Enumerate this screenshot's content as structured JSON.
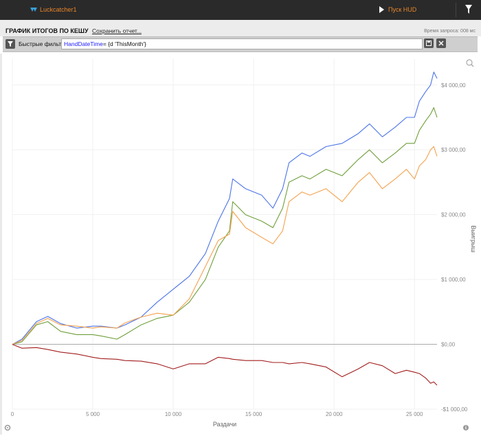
{
  "topbar": {
    "app_name": "Luckcatcher1",
    "hud_label": "Пуск HUD"
  },
  "header": {
    "title": "ГРАФИК ИТОГОВ ПО КЕШУ",
    "save_label": "Сохранить отчет...",
    "query_time": "Время запроса: 008 мс"
  },
  "filter": {
    "label": "Быстрые фильтры",
    "keyword": "HandDateTime",
    "value": "= {d 'ThisMonth'}"
  },
  "colors": {
    "series1": "#4a72e8",
    "series2": "#6f9e3a",
    "series3": "#f4a14e",
    "series4": "#a21b1b"
  },
  "chart_data": {
    "type": "line",
    "xlabel": "Раздачи",
    "ylabel": "Выигрыш",
    "xlim": [
      0,
      26400
    ],
    "ylim": [
      -1000,
      4400
    ],
    "x_ticks": [
      0,
      5000,
      10000,
      15000,
      20000,
      25000
    ],
    "x_tick_labels": [
      "0",
      "5 000",
      "10 000",
      "15 000",
      "20 000",
      "25 000"
    ],
    "y_ticks": [
      -1000,
      0,
      1000,
      2000,
      3000,
      4000
    ],
    "y_tick_labels": [
      "-$1 000,00",
      "$0,00",
      "$1 000,00",
      "$2 000,00",
      "$3 000,00",
      "$4 000,00"
    ],
    "grid": true,
    "series": [
      {
        "color": "#4a72e8",
        "x": [
          0,
          600,
          1500,
          2200,
          3000,
          4000,
          5000,
          5500,
          6500,
          7000,
          8000,
          9000,
          10000,
          11000,
          12000,
          12800,
          13500,
          13700,
          14500,
          15500,
          16200,
          16800,
          17200,
          18000,
          18500,
          19500,
          20500,
          21500,
          22200,
          23000,
          23800,
          24500,
          25000,
          25300,
          25700,
          26000,
          26200,
          26400
        ],
        "y": [
          0,
          80,
          350,
          430,
          320,
          250,
          280,
          280,
          250,
          300,
          420,
          650,
          850,
          1050,
          1400,
          1900,
          2250,
          2550,
          2400,
          2300,
          2100,
          2400,
          2800,
          2950,
          2900,
          3050,
          3100,
          3250,
          3400,
          3200,
          3350,
          3500,
          3500,
          3750,
          3900,
          4000,
          4200,
          4100
        ]
      },
      {
        "color": "#6f9e3a",
        "x": [
          0,
          600,
          1500,
          2200,
          3000,
          4000,
          5000,
          5500,
          6500,
          7000,
          8000,
          9000,
          10000,
          11000,
          12000,
          12800,
          13500,
          13700,
          14500,
          15500,
          16200,
          16800,
          17200,
          18000,
          18500,
          19500,
          20500,
          21500,
          22200,
          23000,
          23800,
          24500,
          25000,
          25300,
          25700,
          26000,
          26200,
          26400
        ],
        "y": [
          0,
          40,
          300,
          350,
          200,
          150,
          150,
          130,
          80,
          150,
          300,
          400,
          450,
          650,
          1000,
          1500,
          1750,
          2200,
          2000,
          1900,
          1800,
          2100,
          2500,
          2600,
          2550,
          2700,
          2600,
          2850,
          3000,
          2800,
          2950,
          3100,
          3100,
          3300,
          3450,
          3550,
          3650,
          3500
        ]
      },
      {
        "color": "#f4a14e",
        "x": [
          0,
          600,
          1500,
          2200,
          3000,
          4000,
          5000,
          5500,
          6500,
          7000,
          8000,
          9000,
          10000,
          11000,
          12000,
          12800,
          13500,
          13700,
          14500,
          15500,
          16200,
          16800,
          17200,
          18000,
          18500,
          19500,
          20500,
          21500,
          22200,
          23000,
          23800,
          24500,
          25000,
          25300,
          25700,
          26000,
          26200,
          26400
        ],
        "y": [
          0,
          60,
          320,
          400,
          300,
          280,
          250,
          270,
          250,
          330,
          420,
          480,
          450,
          700,
          1200,
          1600,
          1700,
          2050,
          1800,
          1650,
          1550,
          1750,
          2200,
          2350,
          2300,
          2400,
          2200,
          2500,
          2650,
          2400,
          2550,
          2700,
          2550,
          2750,
          2850,
          3000,
          3050,
          2900
        ]
      },
      {
        "color": "#a21b1b",
        "x": [
          0,
          600,
          1500,
          2200,
          3000,
          4000,
          5000,
          5500,
          6500,
          7000,
          8000,
          9000,
          10000,
          11000,
          12000,
          12800,
          13500,
          13700,
          14500,
          15500,
          16200,
          16800,
          17200,
          18000,
          18500,
          19500,
          20500,
          21500,
          22200,
          23000,
          23800,
          24500,
          25000,
          25300,
          25700,
          26000,
          26200,
          26400
        ],
        "y": [
          0,
          -60,
          -50,
          -80,
          -120,
          -150,
          -200,
          -220,
          -230,
          -250,
          -260,
          -300,
          -380,
          -300,
          -300,
          -200,
          -220,
          -230,
          -250,
          -250,
          -280,
          -280,
          -300,
          -280,
          -300,
          -350,
          -500,
          -380,
          -280,
          -330,
          -450,
          -400,
          -430,
          -450,
          -520,
          -600,
          -580,
          -630
        ]
      }
    ]
  }
}
